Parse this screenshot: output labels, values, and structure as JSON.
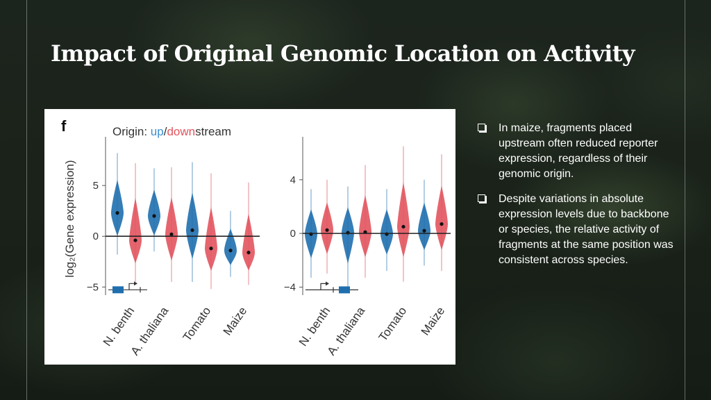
{
  "slide": {
    "title": "Impact of Original Genomic Location on Activity",
    "bullets": [
      "In maize, fragments placed upstream often reduced reporter expression, regardless of their genomic origin.",
      "Despite variations in absolute expression levels due to backbone or species, the relative activity of fragments at the same position was consistent across species."
    ]
  },
  "figure": {
    "panel_label": "f",
    "legend": {
      "prefix": "Origin: ",
      "up": "up",
      "slash": "/",
      "down": "down",
      "suffix": "stream"
    },
    "colors": {
      "up": "#1f6fae",
      "down": "#e2545e",
      "zero_line": "#222222",
      "text": "#333333"
    }
  },
  "chart_data": [
    {
      "type": "violin",
      "panel": "left",
      "ylabel": "log₂(Gene expression)",
      "ylim": [
        -5.8,
        9.8
      ],
      "yticks": [
        -5,
        0,
        5
      ],
      "categories": [
        "N. benth",
        "A. thaliana",
        "Tomato",
        "Maize"
      ],
      "construct_icon": "promoter-upstream",
      "series": [
        {
          "name": "up",
          "color": "#1f6fae",
          "medians": [
            2.3,
            2.0,
            0.6,
            -1.4
          ],
          "ranges": [
            [
              -1.8,
              8.2
            ],
            [
              -1.5,
              6.7
            ],
            [
              -4.5,
              7.3
            ],
            [
              -4.0,
              2.5
            ]
          ]
        },
        {
          "name": "down",
          "color": "#e2545e",
          "medians": [
            -0.4,
            0.2,
            -1.2,
            -1.6
          ],
          "ranges": [
            [
              -4.5,
              7.2
            ],
            [
              -4.5,
              6.8
            ],
            [
              -5.2,
              6.2
            ],
            [
              -4.8,
              5.3
            ]
          ]
        }
      ]
    },
    {
      "type": "violin",
      "panel": "right",
      "ylim": [
        -4.6,
        7.2
      ],
      "yticks": [
        -4,
        0,
        4
      ],
      "categories": [
        "N. benth",
        "A. thaliana",
        "Tomato",
        "Maize"
      ],
      "construct_icon": "promoter-downstream",
      "series": [
        {
          "name": "up",
          "color": "#1f6fae",
          "medians": [
            -0.05,
            0.05,
            -0.05,
            0.2
          ],
          "ranges": [
            [
              -3.3,
              3.3
            ],
            [
              -4.1,
              3.5
            ],
            [
              -2.8,
              3.3
            ],
            [
              -2.4,
              4.0
            ]
          ]
        },
        {
          "name": "down",
          "color": "#e2545e",
          "medians": [
            0.25,
            0.1,
            0.5,
            0.7
          ],
          "ranges": [
            [
              -3.0,
              4.0
            ],
            [
              -3.3,
              5.1
            ],
            [
              -3.6,
              6.5
            ],
            [
              -2.8,
              5.9
            ]
          ]
        }
      ]
    }
  ]
}
